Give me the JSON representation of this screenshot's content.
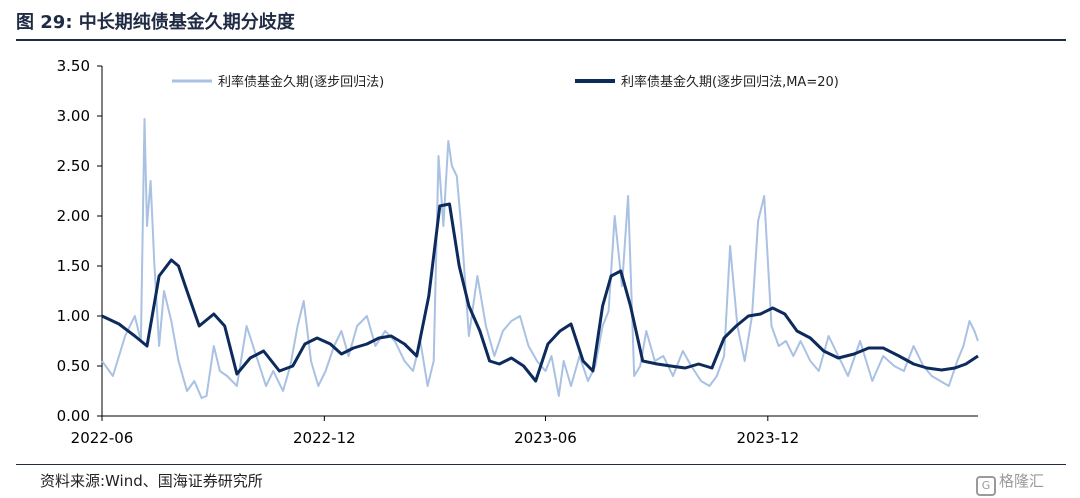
{
  "header": {
    "title": "图 29:  中长期纯债基金久期分歧度"
  },
  "footer": {
    "source": "资料来源:Wind、国海证券研究所",
    "watermark": "格隆汇",
    "watermark_icon_glyph": "G"
  },
  "chart_data": {
    "type": "line",
    "title": "图 29:  中长期纯债基金久期分歧度",
    "xlabel": "",
    "ylabel": "",
    "ylim": [
      0,
      3.5
    ],
    "y_ticks": [
      "0.00",
      "0.50",
      "1.00",
      "1.50",
      "2.00",
      "2.50",
      "3.00",
      "3.50"
    ],
    "x_ticks": [
      "2022-06",
      "2022-12",
      "2023-06",
      "2023-12"
    ],
    "x_range": [
      "2022-06",
      "2024-05-22"
    ],
    "grid": false,
    "legend_position": "top",
    "series": [
      {
        "name": "利率债基金久期(逐步回归法)",
        "color": "#a9c1e3",
        "width": 2,
        "x": [
          "2022-06-01",
          "2022-06-10",
          "2022-06-20",
          "2022-06-28",
          "2022-07-03",
          "2022-07-06",
          "2022-07-08",
          "2022-07-11",
          "2022-07-14",
          "2022-07-18",
          "2022-07-22",
          "2022-07-28",
          "2022-08-03",
          "2022-08-10",
          "2022-08-16",
          "2022-08-22",
          "2022-08-26",
          "2022-09-01",
          "2022-09-06",
          "2022-09-12",
          "2022-09-20",
          "2022-09-28",
          "2022-10-06",
          "2022-10-14",
          "2022-10-20",
          "2022-10-28",
          "2022-11-03",
          "2022-11-09",
          "2022-11-14",
          "2022-11-20",
          "2022-11-26",
          "2022-12-02",
          "2022-12-09",
          "2022-12-15",
          "2022-12-21",
          "2022-12-28",
          "2023-01-05",
          "2023-01-12",
          "2023-01-20",
          "2023-01-28",
          "2023-02-05",
          "2023-02-12",
          "2023-02-18",
          "2023-02-24",
          "2023-03-01",
          "2023-03-05",
          "2023-03-09",
          "2023-03-13",
          "2023-03-16",
          "2023-03-20",
          "2023-03-24",
          "2023-03-30",
          "2023-04-06",
          "2023-04-13",
          "2023-04-20",
          "2023-04-27",
          "2023-05-04",
          "2023-05-11",
          "2023-05-18",
          "2023-05-25",
          "2023-06-01",
          "2023-06-06",
          "2023-06-12",
          "2023-06-16",
          "2023-06-22",
          "2023-06-29",
          "2023-07-06",
          "2023-07-12",
          "2023-07-18",
          "2023-07-23",
          "2023-07-28",
          "2023-08-03",
          "2023-08-08",
          "2023-08-13",
          "2023-08-18",
          "2023-08-23",
          "2023-08-30",
          "2023-09-06",
          "2023-09-14",
          "2023-09-22",
          "2023-09-29",
          "2023-10-07",
          "2023-10-14",
          "2023-10-20",
          "2023-10-26",
          "2023-10-31",
          "2023-11-06",
          "2023-11-12",
          "2023-11-18",
          "2023-11-23",
          "2023-11-28",
          "2023-12-04",
          "2023-12-10",
          "2023-12-16",
          "2023-12-22",
          "2023-12-28",
          "2024-01-05",
          "2024-01-12",
          "2024-01-20",
          "2024-01-28",
          "2024-02-05",
          "2024-02-15",
          "2024-02-25",
          "2024-03-05",
          "2024-03-14",
          "2024-03-22",
          "2024-03-30",
          "2024-04-07",
          "2024-04-14",
          "2024-04-21",
          "2024-04-28",
          "2024-05-05",
          "2024-05-10",
          "2024-05-15",
          "2024-05-19",
          "2024-05-22"
        ],
        "values": [
          0.55,
          0.4,
          0.8,
          1.0,
          0.75,
          2.97,
          1.9,
          2.35,
          1.55,
          0.7,
          1.25,
          0.95,
          0.55,
          0.25,
          0.35,
          0.18,
          0.2,
          0.7,
          0.45,
          0.4,
          0.3,
          0.9,
          0.6,
          0.3,
          0.45,
          0.25,
          0.5,
          0.9,
          1.15,
          0.55,
          0.3,
          0.45,
          0.7,
          0.85,
          0.6,
          0.9,
          1.0,
          0.7,
          0.85,
          0.75,
          0.55,
          0.45,
          0.75,
          0.3,
          0.55,
          2.6,
          1.9,
          2.75,
          2.5,
          2.4,
          1.85,
          0.8,
          1.4,
          0.9,
          0.6,
          0.85,
          0.95,
          1.0,
          0.7,
          0.55,
          0.45,
          0.6,
          0.2,
          0.55,
          0.3,
          0.6,
          0.35,
          0.5,
          0.9,
          1.05,
          2.0,
          1.3,
          2.2,
          0.4,
          0.5,
          0.85,
          0.55,
          0.6,
          0.4,
          0.65,
          0.5,
          0.35,
          0.3,
          0.4,
          0.6,
          1.7,
          0.9,
          0.55,
          1.0,
          1.95,
          2.2,
          0.9,
          0.7,
          0.75,
          0.6,
          0.75,
          0.55,
          0.45,
          0.8,
          0.6,
          0.4,
          0.75,
          0.35,
          0.6,
          0.5,
          0.45,
          0.7,
          0.5,
          0.4,
          0.35,
          0.3,
          0.55,
          0.7,
          0.95,
          0.85,
          0.75
        ]
      },
      {
        "name": "利率债基金久期(逐步回归法,MA=20)",
        "color": "#0d2a5c",
        "width": 3,
        "x": [
          "2022-06-01",
          "2022-06-15",
          "2022-06-28",
          "2022-07-08",
          "2022-07-18",
          "2022-07-28",
          "2022-08-03",
          "2022-08-10",
          "2022-08-20",
          "2022-09-01",
          "2022-09-10",
          "2022-09-20",
          "2022-10-01",
          "2022-10-12",
          "2022-10-25",
          "2022-11-05",
          "2022-11-15",
          "2022-11-25",
          "2022-12-06",
          "2022-12-15",
          "2022-12-25",
          "2023-01-05",
          "2023-01-15",
          "2023-01-25",
          "2023-02-05",
          "2023-02-15",
          "2023-02-25",
          "2023-03-06",
          "2023-03-14",
          "2023-03-22",
          "2023-03-30",
          "2023-04-08",
          "2023-04-16",
          "2023-04-24",
          "2023-05-04",
          "2023-05-14",
          "2023-05-24",
          "2023-06-03",
          "2023-06-13",
          "2023-06-22",
          "2023-07-02",
          "2023-07-10",
          "2023-07-18",
          "2023-07-25",
          "2023-08-02",
          "2023-08-10",
          "2023-08-20",
          "2023-09-01",
          "2023-09-12",
          "2023-09-24",
          "2023-10-05",
          "2023-10-16",
          "2023-10-26",
          "2023-11-05",
          "2023-11-15",
          "2023-11-25",
          "2023-12-05",
          "2023-12-15",
          "2023-12-25",
          "2024-01-05",
          "2024-01-16",
          "2024-01-28",
          "2024-02-10",
          "2024-02-22",
          "2024-03-05",
          "2024-03-18",
          "2024-03-30",
          "2024-04-10",
          "2024-04-22",
          "2024-05-03",
          "2024-05-12",
          "2024-05-22"
        ],
        "values": [
          1.0,
          0.92,
          0.8,
          0.7,
          1.4,
          1.56,
          1.5,
          1.25,
          0.9,
          1.02,
          0.9,
          0.42,
          0.58,
          0.65,
          0.45,
          0.5,
          0.72,
          0.78,
          0.72,
          0.62,
          0.68,
          0.72,
          0.78,
          0.8,
          0.72,
          0.6,
          1.2,
          2.1,
          2.12,
          1.5,
          1.1,
          0.85,
          0.55,
          0.52,
          0.58,
          0.5,
          0.35,
          0.72,
          0.85,
          0.92,
          0.55,
          0.45,
          1.1,
          1.4,
          1.45,
          1.1,
          0.55,
          0.52,
          0.5,
          0.48,
          0.52,
          0.48,
          0.78,
          0.9,
          1.0,
          1.02,
          1.08,
          1.02,
          0.85,
          0.78,
          0.65,
          0.58,
          0.62,
          0.68,
          0.68,
          0.6,
          0.52,
          0.48,
          0.46,
          0.48,
          0.52,
          0.6
        ]
      }
    ]
  }
}
